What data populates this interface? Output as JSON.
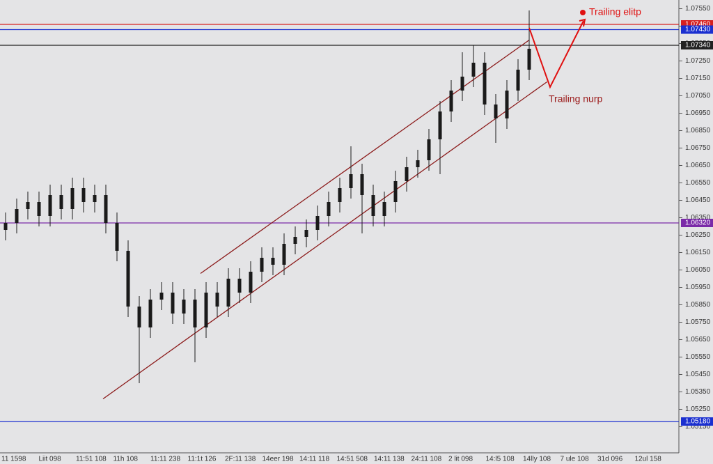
{
  "chart_data": {
    "type": "candlestick",
    "color": "#1a1a1a",
    "open": [
      1.0628,
      1.0632,
      1.064,
      1.0644,
      1.0636,
      1.0648,
      1.064,
      1.0652,
      1.0644,
      1.0648,
      1.0632,
      1.0616,
      1.0584,
      1.0572,
      1.0588,
      1.0592,
      1.058,
      1.0588,
      1.0572,
      1.0592,
      1.0584,
      1.06,
      1.0592,
      1.0604,
      1.0612,
      1.0608,
      1.062,
      1.0624,
      1.0628,
      1.0636,
      1.0644,
      1.0652,
      1.066,
      1.0648,
      1.0636,
      1.0644,
      1.0656,
      1.0664,
      1.0668,
      1.068,
      1.0696,
      1.0708,
      1.0716,
      1.0724,
      1.07,
      1.0692,
      1.0708,
      1.072
    ],
    "high": [
      1.0638,
      1.0646,
      1.065,
      1.065,
      1.0654,
      1.0654,
      1.0658,
      1.0658,
      1.0654,
      1.0654,
      1.0638,
      1.0622,
      1.059,
      1.0594,
      1.0598,
      1.0598,
      1.0594,
      1.0594,
      1.0598,
      1.0598,
      1.0606,
      1.0606,
      1.061,
      1.0618,
      1.0618,
      1.0626,
      1.063,
      1.0634,
      1.0642,
      1.065,
      1.0658,
      1.0676,
      1.0666,
      1.0654,
      1.065,
      1.0662,
      1.067,
      1.0674,
      1.0686,
      1.0702,
      1.0714,
      1.073,
      1.0734,
      1.073,
      1.0706,
      1.0714,
      1.0726,
      1.0754
    ],
    "low": [
      1.0622,
      1.0626,
      1.0634,
      1.063,
      1.063,
      1.0634,
      1.0634,
      1.0638,
      1.0638,
      1.0626,
      1.061,
      1.0578,
      1.054,
      1.0566,
      1.0582,
      1.0574,
      1.0574,
      1.0552,
      1.0566,
      1.0578,
      1.0578,
      1.0586,
      1.0586,
      1.0598,
      1.0602,
      1.0602,
      1.0614,
      1.0618,
      1.0622,
      1.063,
      1.0638,
      1.0646,
      1.0626,
      1.063,
      1.063,
      1.0638,
      1.065,
      1.0658,
      1.0662,
      1.066,
      1.069,
      1.0702,
      1.071,
      1.0694,
      1.0678,
      1.0686,
      1.0702,
      1.0714
    ],
    "close": [
      1.0632,
      1.064,
      1.0644,
      1.0636,
      1.0648,
      1.064,
      1.0652,
      1.0644,
      1.0648,
      1.0632,
      1.0616,
      1.0584,
      1.0572,
      1.0588,
      1.0592,
      1.058,
      1.0588,
      1.0572,
      1.0592,
      1.0584,
      1.06,
      1.0592,
      1.0604,
      1.0612,
      1.0608,
      1.062,
      1.0624,
      1.0628,
      1.0636,
      1.0644,
      1.0652,
      1.066,
      1.0648,
      1.0636,
      1.0644,
      1.0656,
      1.0664,
      1.0668,
      1.068,
      1.0696,
      1.0708,
      1.0716,
      1.0724,
      1.07,
      1.0692,
      1.0708,
      1.072,
      1.0732
    ],
    "ylim": [
      1.05,
      1.076
    ],
    "yticks": [
      {
        "value": 1.0755,
        "label": "1.07550"
      },
      {
        "value": 1.0745,
        "label": "1.07450"
      },
      {
        "value": 1.0735,
        "label": "1.07350"
      },
      {
        "value": 1.0725,
        "label": "1.07250"
      },
      {
        "value": 1.0715,
        "label": "1.07150"
      },
      {
        "value": 1.0705,
        "label": "1.07050"
      },
      {
        "value": 1.0695,
        "label": "1.06950"
      },
      {
        "value": 1.0685,
        "label": "1.06850"
      },
      {
        "value": 1.0675,
        "label": "1.06750"
      },
      {
        "value": 1.0665,
        "label": "1.06650"
      },
      {
        "value": 1.0655,
        "label": "1.06550"
      },
      {
        "value": 1.0645,
        "label": "1.06450"
      },
      {
        "value": 1.0635,
        "label": "1.06350"
      },
      {
        "value": 1.0625,
        "label": "1.06250"
      },
      {
        "value": 1.0615,
        "label": "1.06150"
      },
      {
        "value": 1.0605,
        "label": "1.06050"
      },
      {
        "value": 1.0595,
        "label": "1.05950"
      },
      {
        "value": 1.0585,
        "label": "1.05850"
      },
      {
        "value": 1.0575,
        "label": "1.05750"
      },
      {
        "value": 1.0565,
        "label": "1.05650"
      },
      {
        "value": 1.0555,
        "label": "1.05550"
      },
      {
        "value": 1.0545,
        "label": "1.05450"
      },
      {
        "value": 1.0535,
        "label": "1.05350"
      },
      {
        "value": 1.0525,
        "label": "1.05250"
      },
      {
        "value": 1.0515,
        "label": "1.05150"
      }
    ],
    "x_labels": [
      "11 1598",
      "Liit 098",
      "11:51 108",
      "11h 108",
      "11:11 238",
      "11:1t 126",
      "2F:11 138",
      "14eer 198",
      "14:11 118",
      "14:51 508",
      "14:11 138",
      "24:11 108",
      "2 lit 098",
      "14:l5 108",
      "14lly 108",
      "7 ule 108",
      "31d 096",
      "12ul 158"
    ],
    "levels": [
      {
        "value": 1.0746,
        "label": "1.07460",
        "color": "#d62020"
      },
      {
        "value": 1.0743,
        "label": "1.07430",
        "color": "#1a2fd0"
      },
      {
        "value": 1.0734,
        "label": "1.07340",
        "color": "#222222"
      },
      {
        "value": 1.0632,
        "label": "1.06320",
        "color": "#7a2aa8"
      },
      {
        "value": 1.0518,
        "label": "1.05180",
        "color": "#1a2fd0"
      }
    ],
    "trendlines": [
      {
        "color": "#8b1a1a",
        "x": [
          8.75,
          48.6
        ],
        "y": [
          1.0531,
          1.0713
        ]
      },
      {
        "color": "#8b1a1a",
        "x": [
          17.5,
          47
        ],
        "y": [
          1.0603,
          1.0737
        ]
      }
    ],
    "annotations": [
      {
        "text": "Trailing elitp",
        "color": "#e01010"
      },
      {
        "text": "Trailing nurp",
        "color": "#9b1a1a"
      }
    ]
  }
}
